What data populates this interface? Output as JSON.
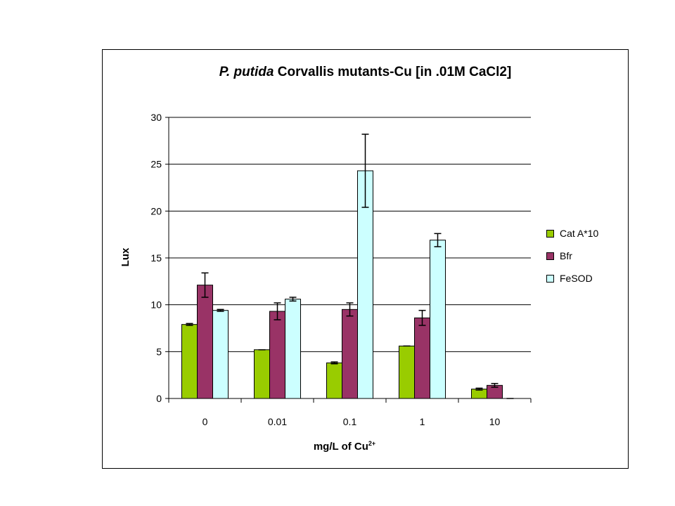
{
  "chart": {
    "title_italic": "P. putida",
    "title_rest": " Corvallis mutants-Cu [in .01M CaCl2]",
    "xlabel_main": "mg/L of Cu",
    "xlabel_sup": "2+",
    "ylabel": "Lux"
  },
  "legend": {
    "items": [
      {
        "label": "Cat A*10",
        "color": "#99cc00"
      },
      {
        "label": "Bfr",
        "color": "#993366"
      },
      {
        "label": "FeSOD",
        "color": "#ccffff"
      }
    ]
  },
  "chart_data": {
    "type": "bar",
    "title": "P. putida Corvallis mutants-Cu [in .01M CaCl2]",
    "xlabel": "mg/L of Cu2+",
    "ylabel": "Lux",
    "categories": [
      "0",
      "0.01",
      "0.1",
      "1",
      "10"
    ],
    "ylim": [
      0,
      30
    ],
    "yticks": [
      0,
      5,
      10,
      15,
      20,
      25,
      30
    ],
    "grid": true,
    "legend_position": "right",
    "series": [
      {
        "name": "Cat A*10",
        "color": "#99cc00",
        "values": [
          7.9,
          5.2,
          3.8,
          5.6,
          1.0
        ],
        "errors": [
          0.1,
          0.0,
          0.1,
          0.0,
          0.1
        ]
      },
      {
        "name": "Bfr",
        "color": "#993366",
        "values": [
          12.1,
          9.3,
          9.5,
          8.6,
          1.4
        ],
        "errors": [
          1.3,
          0.9,
          0.7,
          0.8,
          0.2
        ]
      },
      {
        "name": "FeSOD",
        "color": "#ccffff",
        "values": [
          9.4,
          10.6,
          24.3,
          16.9,
          0.0
        ],
        "errors": [
          0.1,
          0.2,
          3.9,
          0.7,
          0.0
        ]
      }
    ]
  }
}
